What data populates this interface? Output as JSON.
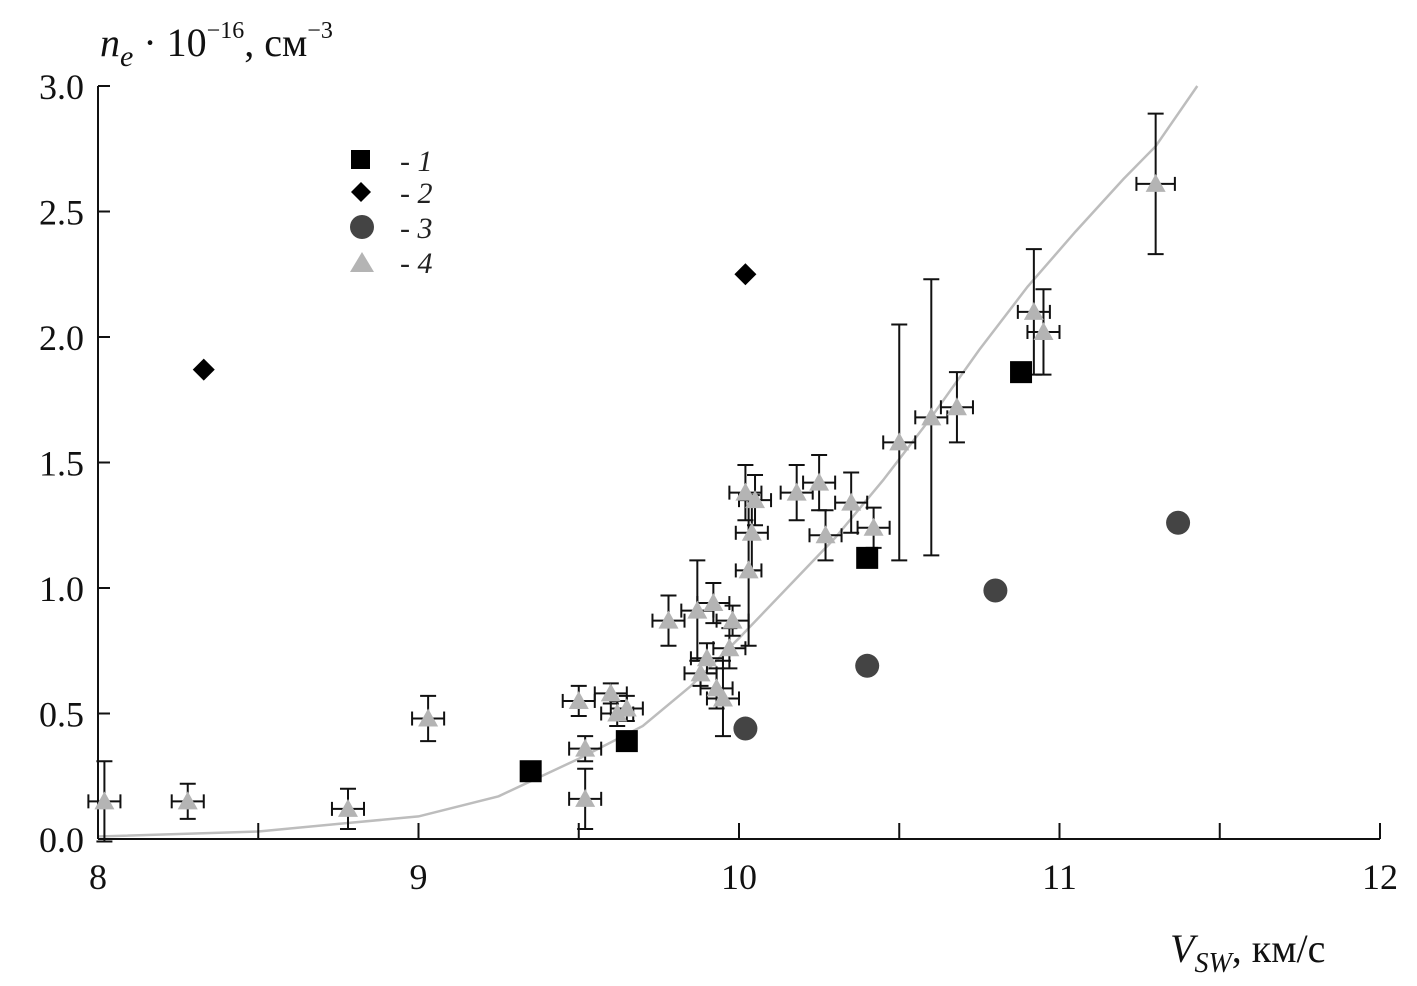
{
  "chart_data": {
    "type": "scatter",
    "title": "",
    "ylabel": {
      "var": "n",
      "sub": "e",
      "mult": " · 10",
      "exp": "−16",
      "unit": ", см",
      "unit_exp": "−3"
    },
    "xlabel": {
      "var": "V",
      "sub": "SW",
      "unit": ", км/с"
    },
    "xlim": [
      8,
      12
    ],
    "ylim": [
      0,
      3
    ],
    "x_ticks": [
      8,
      9,
      10,
      11,
      12
    ],
    "x_tick_labels": [
      "8",
      "9",
      "10",
      "11",
      "12"
    ],
    "x_minor_ticks": [
      8.5,
      9.5,
      10.5,
      11.5
    ],
    "y_ticks": [
      0,
      0.5,
      1,
      1.5,
      2,
      2.5,
      3
    ],
    "y_tick_labels": [
      "0.0",
      "0.5",
      "1.0",
      "1.5",
      "2.0",
      "2.5",
      "3.0"
    ],
    "legend": [
      {
        "marker": "square",
        "label": "- 1"
      },
      {
        "marker": "diamond",
        "label": "- 2"
      },
      {
        "marker": "circle",
        "label": "- 3"
      },
      {
        "marker": "triangle",
        "label": "- 4"
      }
    ],
    "series": [
      {
        "name": "1",
        "marker": "square",
        "color": "#000000",
        "points": [
          {
            "x": 9.35,
            "y": 0.27
          },
          {
            "x": 9.65,
            "y": 0.39
          },
          {
            "x": 10.4,
            "y": 1.12
          },
          {
            "x": 10.88,
            "y": 1.86
          }
        ]
      },
      {
        "name": "2",
        "marker": "diamond",
        "color": "#000000",
        "points": [
          {
            "x": 8.33,
            "y": 1.87
          },
          {
            "x": 10.02,
            "y": 2.25
          }
        ]
      },
      {
        "name": "3",
        "marker": "circle",
        "color": "#444444",
        "points": [
          {
            "x": 10.02,
            "y": 0.44
          },
          {
            "x": 10.4,
            "y": 0.69
          },
          {
            "x": 10.8,
            "y": 0.99
          },
          {
            "x": 11.37,
            "y": 1.26
          }
        ]
      },
      {
        "name": "4",
        "marker": "triangle",
        "color": "#b4b4b4",
        "err_color": "#111111",
        "points": [
          {
            "x": 8.02,
            "y": 0.15,
            "xerr": 0.05,
            "yerr": 0.16
          },
          {
            "x": 8.28,
            "y": 0.15,
            "xerr": 0.05,
            "yerr": 0.07
          },
          {
            "x": 8.78,
            "y": 0.12,
            "xerr": 0.05,
            "yerr": 0.08
          },
          {
            "x": 9.03,
            "y": 0.48,
            "xerr": 0.05,
            "yerr": 0.09
          },
          {
            "x": 9.5,
            "y": 0.55,
            "xerr": 0.05,
            "yerr": 0.06
          },
          {
            "x": 9.52,
            "y": 0.36,
            "xerr": 0.05,
            "yerr": 0.05
          },
          {
            "x": 9.52,
            "y": 0.16,
            "xerr": 0.05,
            "yerr": 0.12
          },
          {
            "x": 9.6,
            "y": 0.58,
            "xerr": 0.05,
            "yerr": 0.04
          },
          {
            "x": 9.62,
            "y": 0.5,
            "xerr": 0.05,
            "yerr": 0.05
          },
          {
            "x": 9.65,
            "y": 0.52,
            "xerr": 0.05,
            "yerr": 0.05
          },
          {
            "x": 9.78,
            "y": 0.87,
            "xerr": 0.05,
            "yerr": 0.1
          },
          {
            "x": 9.87,
            "y": 0.91,
            "xerr": 0.05,
            "yerr": 0.2
          },
          {
            "x": 9.88,
            "y": 0.66,
            "xerr": 0.05,
            "yerr": 0.05
          },
          {
            "x": 9.9,
            "y": 0.72,
            "xerr": 0.05,
            "yerr": 0.06
          },
          {
            "x": 9.92,
            "y": 0.94,
            "xerr": 0.05,
            "yerr": 0.08
          },
          {
            "x": 9.93,
            "y": 0.6,
            "xerr": 0.05,
            "yerr": 0.08
          },
          {
            "x": 9.95,
            "y": 0.56,
            "xerr": 0.05,
            "yerr": 0.15
          },
          {
            "x": 9.97,
            "y": 0.76,
            "xerr": 0.05,
            "yerr": 0.08
          },
          {
            "x": 9.98,
            "y": 0.87,
            "xerr": 0.05,
            "yerr": 0.06
          },
          {
            "x": 10.02,
            "y": 1.38,
            "xerr": 0.05,
            "yerr": 0.11
          },
          {
            "x": 10.03,
            "y": 1.07,
            "xerr": 0.04,
            "yerr": 0.3
          },
          {
            "x": 10.04,
            "y": 1.22,
            "xerr": 0.05,
            "yerr": 0.15
          },
          {
            "x": 10.05,
            "y": 1.35,
            "xerr": 0.05,
            "yerr": 0.1
          },
          {
            "x": 10.18,
            "y": 1.38,
            "xerr": 0.05,
            "yerr": 0.11
          },
          {
            "x": 10.25,
            "y": 1.42,
            "xerr": 0.05,
            "yerr": 0.11
          },
          {
            "x": 10.27,
            "y": 1.21,
            "xerr": 0.05,
            "yerr": 0.1
          },
          {
            "x": 10.35,
            "y": 1.34,
            "xerr": 0.05,
            "yerr": 0.12
          },
          {
            "x": 10.42,
            "y": 1.24,
            "xerr": 0.05,
            "yerr": 0.08
          },
          {
            "x": 10.5,
            "y": 1.58,
            "xerr": 0.05,
            "yerr": 0.47
          },
          {
            "x": 10.6,
            "y": 1.68,
            "xerr": 0.05,
            "yerr": 0.55
          },
          {
            "x": 10.68,
            "y": 1.72,
            "xerr": 0.05,
            "yerr": 0.14
          },
          {
            "x": 10.92,
            "y": 2.1,
            "xerr": 0.05,
            "yerr": 0.25
          },
          {
            "x": 10.95,
            "y": 2.02,
            "xerr": 0.05,
            "yerr": 0.17
          },
          {
            "x": 11.3,
            "y": 2.61,
            "xerr": 0.06,
            "yerr": 0.28
          }
        ]
      }
    ],
    "fit_curve": {
      "color": "#bdbdbd",
      "points": [
        [
          8.0,
          0.01
        ],
        [
          8.5,
          0.03
        ],
        [
          8.75,
          0.06
        ],
        [
          9.0,
          0.09
        ],
        [
          9.25,
          0.17
        ],
        [
          9.5,
          0.32
        ],
        [
          9.7,
          0.45
        ],
        [
          9.85,
          0.61
        ],
        [
          10.0,
          0.8
        ],
        [
          10.15,
          1.0
        ],
        [
          10.3,
          1.2
        ],
        [
          10.45,
          1.43
        ],
        [
          10.6,
          1.68
        ],
        [
          10.75,
          1.95
        ],
        [
          10.9,
          2.2
        ],
        [
          11.05,
          2.42
        ],
        [
          11.2,
          2.63
        ],
        [
          11.3,
          2.76
        ],
        [
          11.43,
          3.0
        ]
      ]
    }
  }
}
